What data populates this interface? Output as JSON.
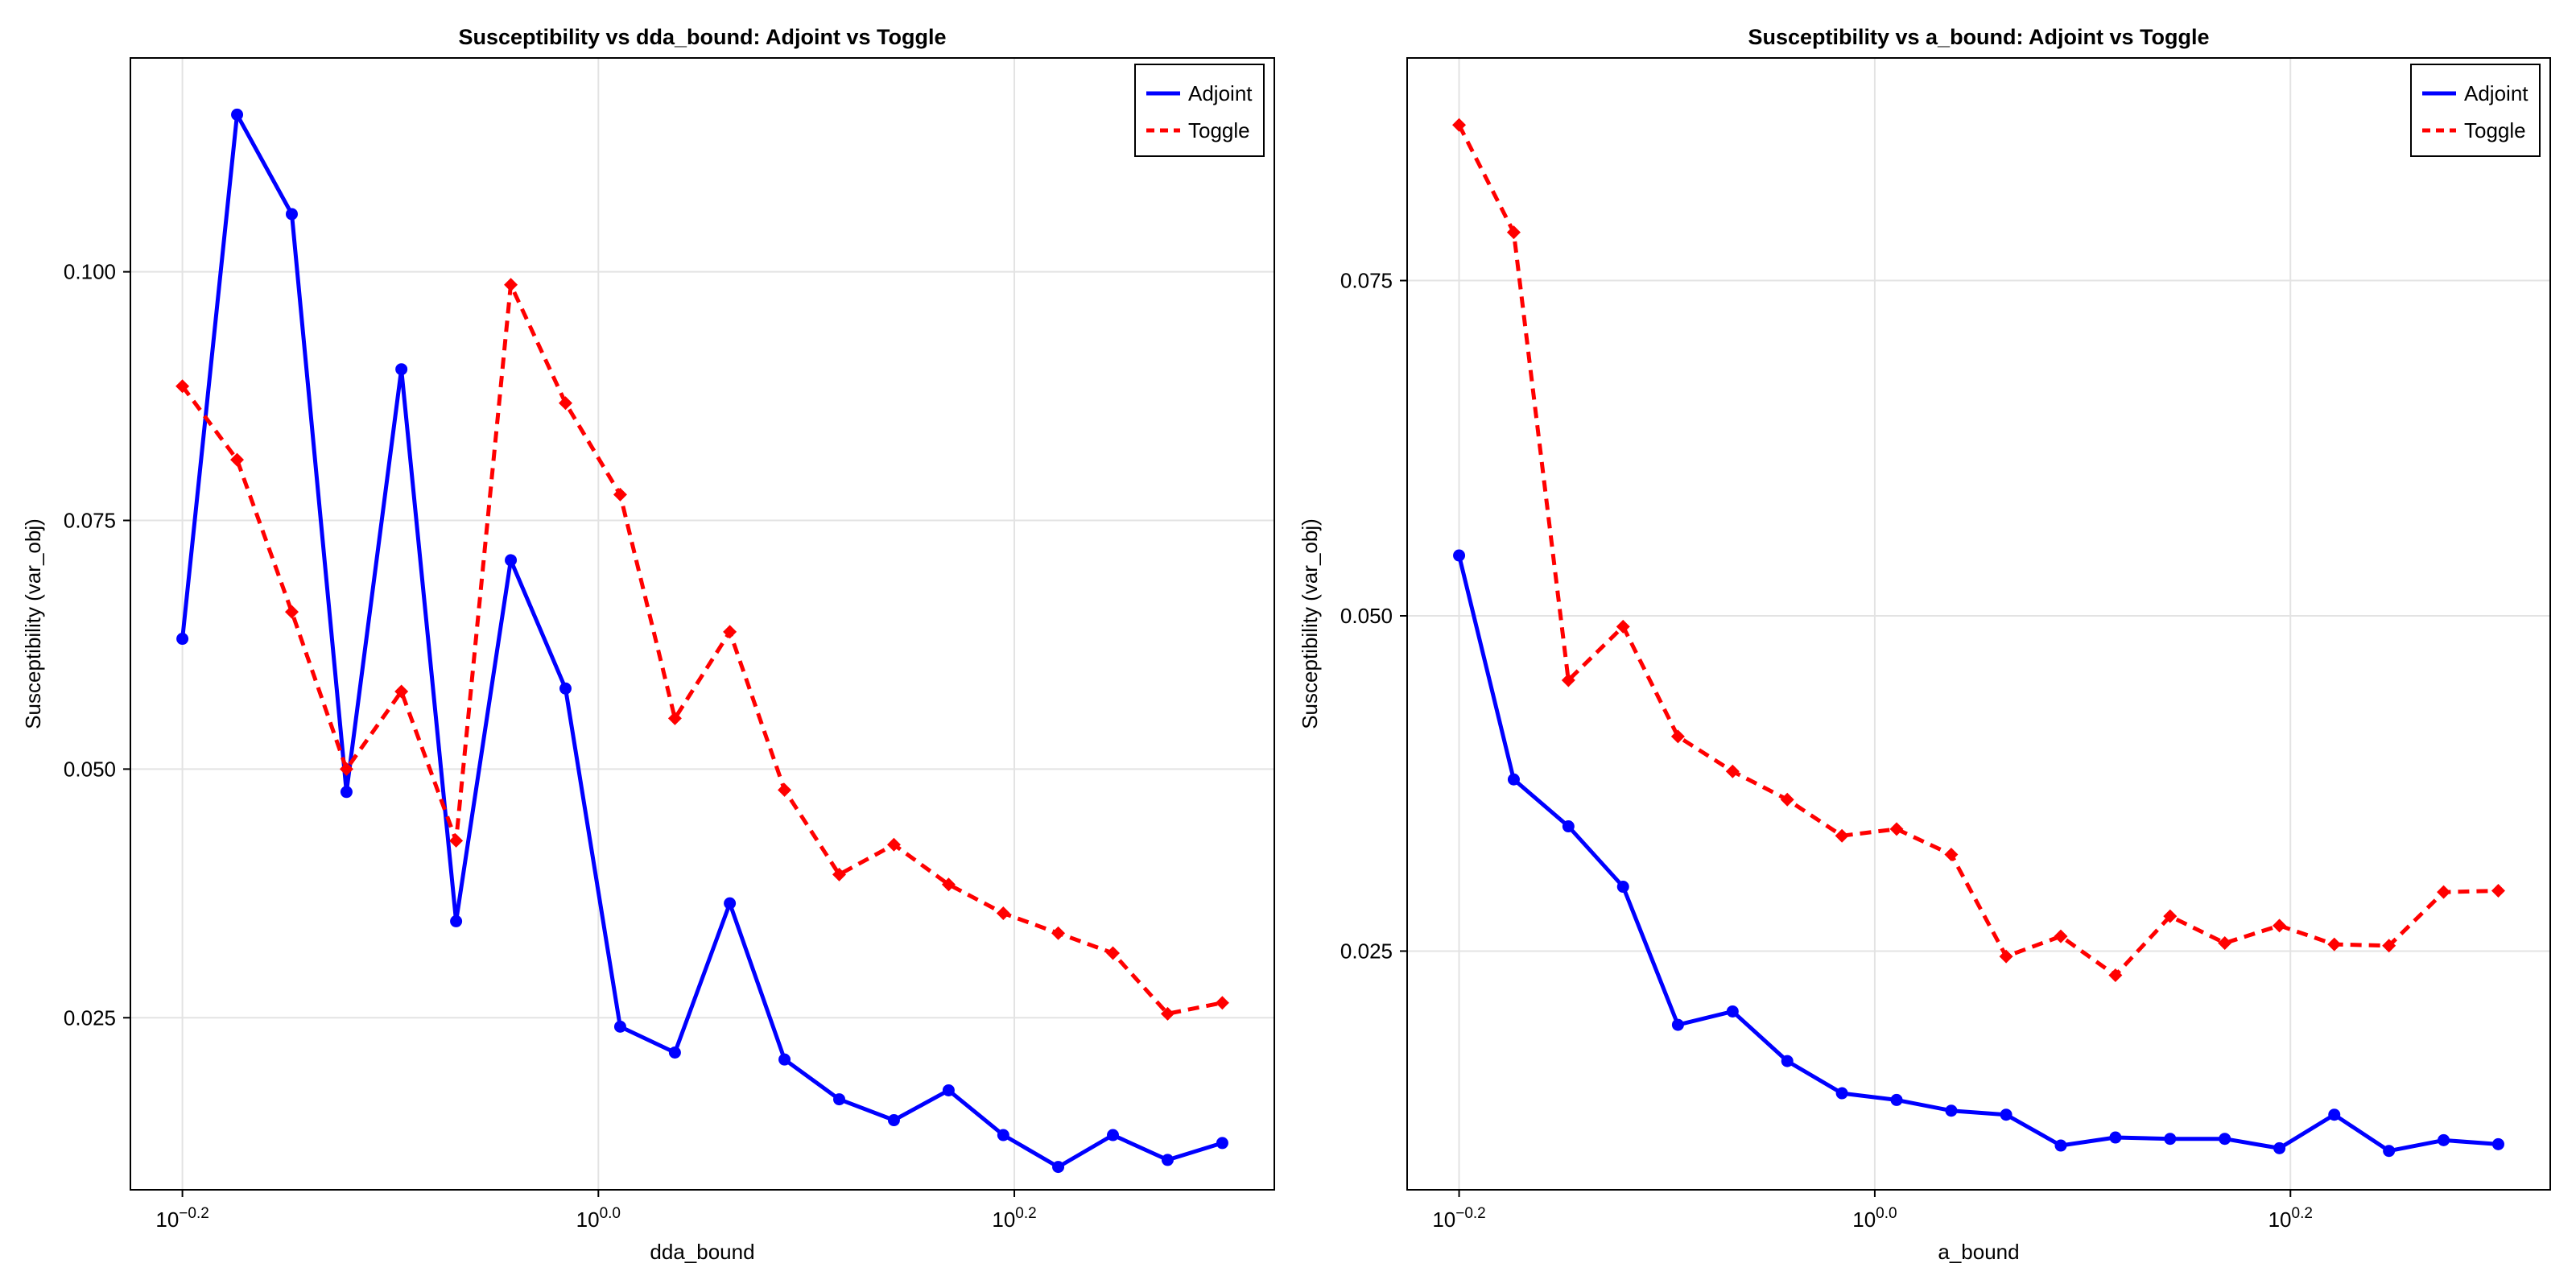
{
  "chart_data": [
    {
      "type": "line",
      "title": "Susceptibility vs dda_bound: Adjoint vs Toggle",
      "xlabel": "dda_bound",
      "ylabel": "Susceptibility (var_obj)",
      "x_scale": "log10",
      "x_ticks": [
        {
          "value": -0.2,
          "base": "10",
          "exp": "−0.2"
        },
        {
          "value": 0.0,
          "base": "10",
          "exp": "0.0"
        },
        {
          "value": 0.2,
          "base": "10",
          "exp": "0.2"
        }
      ],
      "y_ticks": [
        {
          "value": 0.025,
          "label": "0.025"
        },
        {
          "value": 0.05,
          "label": "0.050"
        },
        {
          "value": 0.075,
          "label": "0.075"
        },
        {
          "value": 0.1,
          "label": "0.100"
        }
      ],
      "xlim": [
        -0.225,
        0.325
      ],
      "ylim": [
        0.0077,
        0.1215
      ],
      "grid": true,
      "legend_position": "top-right",
      "x": [
        -0.2,
        -0.1737,
        -0.1474,
        -0.1211,
        -0.0947,
        -0.0684,
        -0.0421,
        -0.0158,
        0.0105,
        0.0368,
        0.0632,
        0.0895,
        0.1158,
        0.1421,
        0.1684,
        0.1947,
        0.2211,
        0.2474,
        0.2737,
        0.3
      ],
      "series": [
        {
          "name": "Adjoint",
          "color": "#0000ff",
          "dash": "solid",
          "marker": "circle",
          "values": [
            0.0631,
            0.1158,
            0.1058,
            0.0477,
            0.0902,
            0.0347,
            0.071,
            0.0581,
            0.0241,
            0.0215,
            0.0365,
            0.0208,
            0.0168,
            0.0147,
            0.0177,
            0.0132,
            0.01,
            0.0132,
            0.0107,
            0.0124
          ]
        },
        {
          "name": "Toggle",
          "color": "#ff0000",
          "dash": "dashed",
          "marker": "diamond",
          "values": [
            0.0885,
            0.0811,
            0.0658,
            0.05,
            0.0578,
            0.0428,
            0.0987,
            0.0868,
            0.0776,
            0.0551,
            0.0638,
            0.0479,
            0.0394,
            0.0424,
            0.0384,
            0.0355,
            0.0335,
            0.0315,
            0.0254,
            0.0265
          ]
        }
      ]
    },
    {
      "type": "line",
      "title": "Susceptibility vs a_bound: Adjoint vs Toggle",
      "xlabel": "a_bound",
      "ylabel": "Susceptibility (var_obj)",
      "x_scale": "log10",
      "x_ticks": [
        {
          "value": -0.2,
          "base": "10",
          "exp": "−0.2"
        },
        {
          "value": 0.0,
          "base": "10",
          "exp": "0.0"
        },
        {
          "value": 0.2,
          "base": "10",
          "exp": "0.2"
        }
      ],
      "y_ticks": [
        {
          "value": 0.025,
          "label": "0.025"
        },
        {
          "value": 0.05,
          "label": "0.050"
        },
        {
          "value": 0.075,
          "label": "0.075"
        }
      ],
      "xlim": [
        -0.225,
        0.325
      ],
      "ylim": [
        0.0072,
        0.0916
      ],
      "grid": true,
      "legend_position": "top-right",
      "x": [
        -0.2,
        -0.1737,
        -0.1474,
        -0.1211,
        -0.0947,
        -0.0684,
        -0.0421,
        -0.0158,
        0.0105,
        0.0368,
        0.0632,
        0.0895,
        0.1158,
        0.1421,
        0.1684,
        0.1947,
        0.2211,
        0.2474,
        0.2737,
        0.3
      ],
      "series": [
        {
          "name": "Adjoint",
          "color": "#0000ff",
          "dash": "solid",
          "marker": "circle",
          "values": [
            0.0545,
            0.0378,
            0.0343,
            0.0298,
            0.0195,
            0.0205,
            0.0168,
            0.0144,
            0.0139,
            0.0131,
            0.0128,
            0.0105,
            0.0111,
            0.011,
            0.011,
            0.0103,
            0.0128,
            0.0101,
            0.0109,
            0.0106
          ]
        },
        {
          "name": "Toggle",
          "color": "#ff0000",
          "dash": "dashed",
          "marker": "diamond",
          "values": [
            0.0866,
            0.0786,
            0.0452,
            0.0492,
            0.041,
            0.0384,
            0.0363,
            0.0336,
            0.0341,
            0.0322,
            0.0246,
            0.0261,
            0.0232,
            0.0276,
            0.0256,
            0.0269,
            0.0255,
            0.0254,
            0.0294,
            0.0295
          ]
        }
      ]
    }
  ]
}
